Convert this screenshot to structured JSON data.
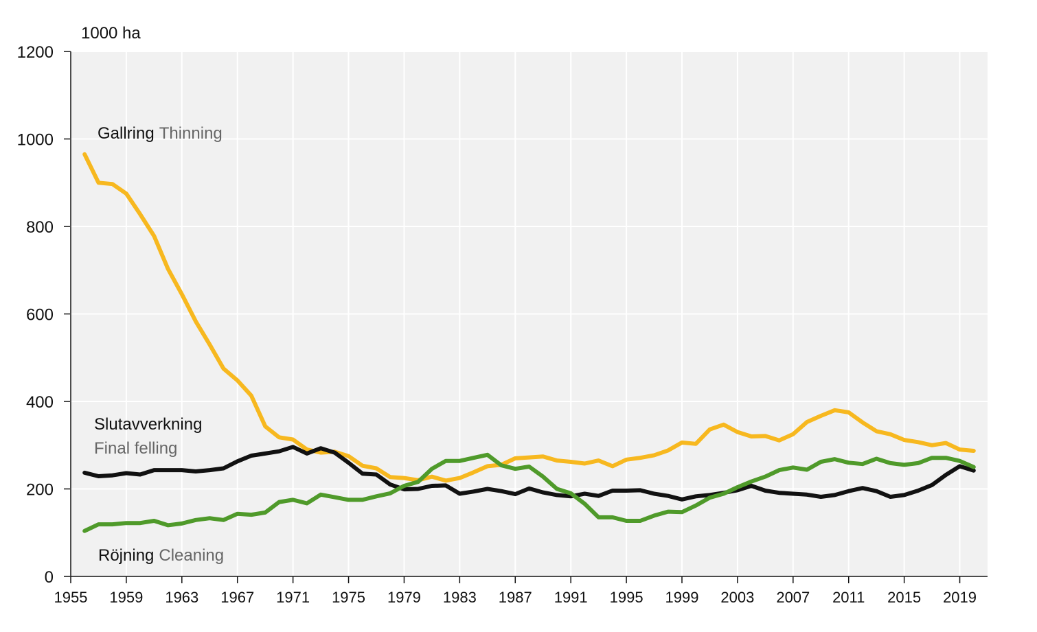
{
  "chart_data": {
    "type": "line",
    "y_axis_label": "1000 ha",
    "x": [
      1956,
      1957,
      1958,
      1959,
      1960,
      1961,
      1962,
      1963,
      1964,
      1965,
      1966,
      1967,
      1968,
      1969,
      1970,
      1971,
      1972,
      1973,
      1974,
      1975,
      1976,
      1977,
      1978,
      1979,
      1980,
      1981,
      1982,
      1983,
      1984,
      1985,
      1986,
      1987,
      1988,
      1989,
      1990,
      1991,
      1992,
      1993,
      1994,
      1995,
      1996,
      1997,
      1998,
      1999,
      2000,
      2001,
      2002,
      2003,
      2004,
      2005,
      2006,
      2007,
      2008,
      2009,
      2010,
      2011,
      2012,
      2013,
      2014,
      2015,
      2016,
      2017,
      2018,
      2019,
      2020
    ],
    "series": [
      {
        "name": "Gallring",
        "name_en": "Thinning",
        "color": "#f7b81f",
        "values": [
          965,
          900,
          897,
          875,
          828,
          778,
          703,
          645,
          583,
          530,
          475,
          448,
          413,
          343,
          318,
          313,
          290,
          283,
          285,
          275,
          253,
          247,
          227,
          225,
          220,
          228,
          219,
          225,
          238,
          252,
          255,
          270,
          272,
          274,
          265,
          262,
          258,
          265,
          252,
          267,
          271,
          277,
          288,
          306,
          303,
          336,
          347,
          330,
          320,
          321,
          311,
          325,
          353,
          367,
          380,
          375,
          352,
          332,
          325,
          312,
          307,
          300,
          305,
          290,
          287
        ]
      },
      {
        "name": "Slutavverkning",
        "name_en": "Final felling",
        "color": "#111111",
        "values": [
          237,
          229,
          231,
          236,
          233,
          243,
          243,
          243,
          240,
          243,
          247,
          263,
          276,
          281,
          286,
          296,
          281,
          293,
          283,
          260,
          235,
          233,
          210,
          199,
          200,
          207,
          208,
          189,
          194,
          200,
          195,
          188,
          201,
          192,
          186,
          183,
          189,
          184,
          196,
          196,
          197,
          189,
          184,
          176,
          183,
          186,
          191,
          197,
          207,
          196,
          191,
          189,
          187,
          182,
          186,
          195,
          202,
          195,
          182,
          186,
          196,
          209,
          232,
          252,
          242
        ]
      },
      {
        "name": "Röjning",
        "name_en": "Cleaning",
        "color": "#4f9a2a",
        "values": [
          104,
          119,
          119,
          122,
          122,
          127,
          117,
          121,
          129,
          133,
          129,
          143,
          141,
          146,
          170,
          175,
          167,
          187,
          181,
          175,
          175,
          183,
          190,
          207,
          216,
          246,
          264,
          264,
          271,
          278,
          254,
          246,
          251,
          228,
          200,
          190,
          166,
          135,
          135,
          127,
          127,
          139,
          148,
          147,
          162,
          180,
          189,
          204,
          217,
          228,
          243,
          249,
          244,
          262,
          268,
          260,
          257,
          269,
          259,
          255,
          259,
          271,
          271,
          264,
          250
        ]
      }
    ],
    "xlim": [
      1955,
      2021
    ],
    "xticks": [
      1955,
      1959,
      1963,
      1967,
      1971,
      1975,
      1979,
      1983,
      1987,
      1991,
      1995,
      1999,
      2003,
      2007,
      2011,
      2015,
      2019
    ],
    "ylim": [
      0,
      1200
    ],
    "yticks": [
      0,
      200,
      400,
      600,
      800,
      1000,
      1200
    ],
    "grid": true
  }
}
